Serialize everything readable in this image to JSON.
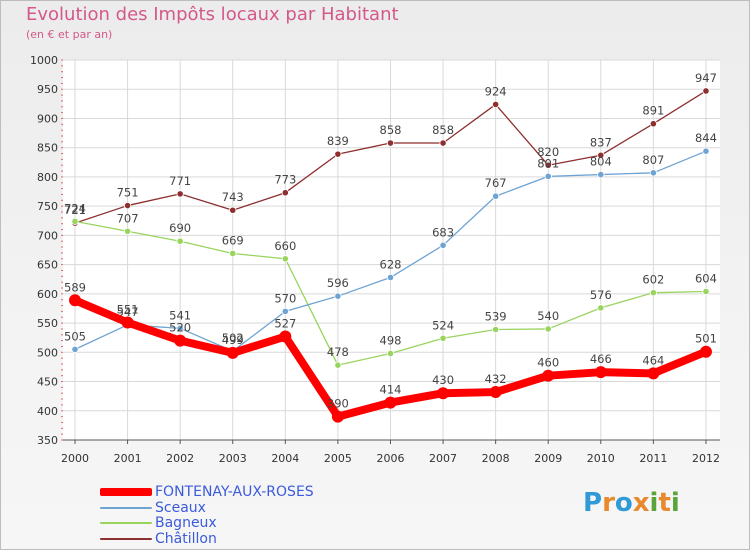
{
  "title": "Evolution des Impôts locaux par Habitant",
  "subtitle": "(en € et par an)",
  "logo": {
    "letters": [
      "P",
      "r",
      "o",
      "x",
      "i",
      "t",
      "i"
    ],
    "colors": [
      "#2f9ad6",
      "#e8892e",
      "#2f9ad6",
      "#e8892e",
      "#5aa43a",
      "#e8892e",
      "#5aa43a"
    ]
  },
  "chart_data": {
    "type": "line",
    "x": [
      "2000",
      "2001",
      "2002",
      "2003",
      "2004",
      "2005",
      "2006",
      "2007",
      "2008",
      "2009",
      "2010",
      "2011",
      "2012"
    ],
    "ylim": [
      350,
      1000
    ],
    "yticks": [
      350,
      400,
      450,
      500,
      550,
      600,
      650,
      700,
      750,
      800,
      850,
      900,
      950,
      1000
    ],
    "grid": true,
    "legend_position": "bottom-left",
    "series": [
      {
        "name": "FONTENAY-AUX-ROSES",
        "color": "#ff0000",
        "values": [
          589,
          551,
          520,
          499,
          527,
          390,
          414,
          430,
          432,
          460,
          466,
          464,
          501
        ],
        "labels": [
          "589",
          "551",
          "520",
          "499",
          "527",
          "390",
          "414",
          "430",
          "432",
          "460",
          "466",
          "464",
          "501"
        ]
      },
      {
        "name": "Sceaux",
        "color": "#6ea3d4",
        "values": [
          505,
          547,
          541,
          502,
          570,
          596,
          628,
          683,
          767,
          801,
          804,
          807,
          844
        ],
        "labels": [
          "505",
          "547",
          "541",
          "502",
          "570",
          "596",
          "628",
          "683",
          "767",
          "801",
          "804",
          "807",
          "844"
        ]
      },
      {
        "name": "Bagneux",
        "color": "#99d45e",
        "values": [
          724,
          707,
          690,
          669,
          660,
          478,
          498,
          524,
          539,
          540,
          576,
          602,
          604
        ],
        "labels": [
          "724",
          "707",
          "690",
          "669",
          "660",
          "478",
          "498",
          "524",
          "539",
          "540",
          "576",
          "602",
          "604"
        ]
      },
      {
        "name": "Châtillon",
        "color": "#8e2f2f",
        "values": [
          721,
          751,
          771,
          743,
          773,
          839,
          858,
          858,
          924,
          820,
          837,
          891,
          947
        ],
        "labels": [
          "721",
          "751",
          "771",
          "743",
          "773",
          "839",
          "858",
          "858",
          "924",
          "820",
          "837",
          "891",
          "947"
        ]
      }
    ]
  }
}
